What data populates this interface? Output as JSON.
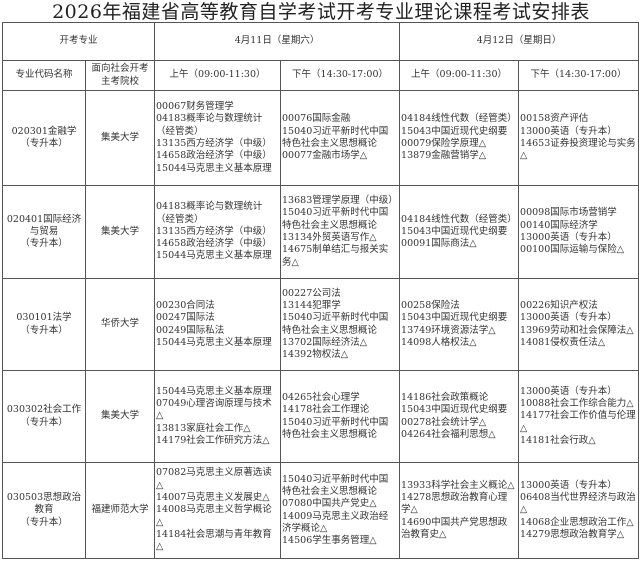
{
  "title": "2026年福建省高等教育自学考试开考专业理论课程考试安排表",
  "header": {
    "major_group": "开考专业",
    "day1": "4月11日（星期六）",
    "day2": "4月12日（星期日）",
    "col_major": "专业代码名称",
    "col_school": "面向社会开考主考院校",
    "am": "上午（09:00-11:30）",
    "pm": "下午（14:30-17:00）"
  },
  "rows": [
    {
      "major": "020301金融学",
      "level": "（专升本）",
      "school": "集美大学",
      "d1am": [
        "00067财务管理学",
        "04183概率论与数理统计（经管类）",
        "13135西方经济学（中级）",
        "14658政治经济学（中级）",
        "15044马克思主义基本原理"
      ],
      "d1pm": [
        "00076国际金融",
        "15040习近平新时代中国特色社会主义思想概论",
        "00077金融市场学△"
      ],
      "d2am": [
        "04184线性代数（经管类）",
        "15043中国近现代史纲要",
        "00079保险学原理△",
        "13879金融营销学△"
      ],
      "d2pm": [
        "00158资产评估",
        "13000英语（专升本）",
        "14653证券投资理论与实务△"
      ]
    },
    {
      "major": "020401国际经济与贸易",
      "level": "（专升本）",
      "school": "集美大学",
      "d1am": [
        "04183概率论与数理统计（经管类）",
        "13135西方经济学（中级）",
        "14658政治经济学（中级）",
        "15044马克思主义基本原理"
      ],
      "d1pm": [
        "13683管理学原理（中级）",
        "15040习近平新时代中国特色社会主义思想概论",
        "13134外贸英语写作△",
        "14675制单结汇与报关实务△"
      ],
      "d2am": [
        "04184线性代数（经管类）",
        "15043中国近现代史纲要",
        "00091国际商法△"
      ],
      "d2pm": [
        "00098国际市场营销学",
        "00140国际经济学",
        "13000英语（专升本）",
        "00100国际运输与保险△"
      ]
    },
    {
      "major": "030101法学",
      "level": "（专升本）",
      "school": "华侨大学",
      "d1am": [
        "00230合同法",
        "00247国际法",
        "00249国际私法",
        "15044马克思主义基本原理"
      ],
      "d1pm": [
        "00227公司法",
        "13144犯罪学",
        "15040习近平新时代中国特色社会主义思想概论",
        "13702国际经济法△",
        "14392物权法△"
      ],
      "d2am": [
        "00258保险法",
        "15043中国近现代史纲要",
        "13749环境资源法学△",
        "14098人格权法△"
      ],
      "d2pm": [
        "00226知识产权法",
        "13000英语（专升本）",
        "13969劳动和社会保障法△",
        "14081侵权责任法△"
      ]
    },
    {
      "major": "030302社会工作",
      "level": "（专升本）",
      "school": "集美大学",
      "d1am": [
        "15044马克思主义基本原理",
        "07049心理咨询原理与技术△",
        "13813家庭社会工作△",
        "14179社会工作研究方法△"
      ],
      "d1pm": [
        "04265社会心理学",
        "14178社会工作理论",
        "15040习近平新时代中国特色社会主义思想概论"
      ],
      "d2am": [
        "14186社会政策概论",
        "15043中国近现代史纲要",
        "00278社会统计学△",
        "04264社会福利思想△"
      ],
      "d2pm": [
        "13000英语（专升本）",
        "10088社会工作综合能力△",
        "14177社会工作价值与伦理△",
        "14181社会行政△"
      ]
    },
    {
      "major": "030503思想政治教育",
      "level": "（专升本）",
      "school": "福建师范大学",
      "d1am": [
        "07082马克思主义原著选读△",
        "14007马克思主义发展史△",
        "14008马克思主义哲学概论△",
        "14184社会思潮与青年教育△"
      ],
      "d1pm": [
        "15040习近平新时代中国特色社会主义思想概论",
        "07080中国共产党史△",
        "14009马克思主义政治经济学概论△",
        "14506学生事务管理△"
      ],
      "d2am": [
        "13933科学社会主义概论△",
        "14278思想政治教育心理学△",
        "14690中国共产党思想政治教育史△"
      ],
      "d2pm": [
        "13000英语（专升本）",
        "06408当代世界经济与政治△",
        "14068企业思想政治工作△",
        "14279思想政治教育学△"
      ]
    }
  ]
}
